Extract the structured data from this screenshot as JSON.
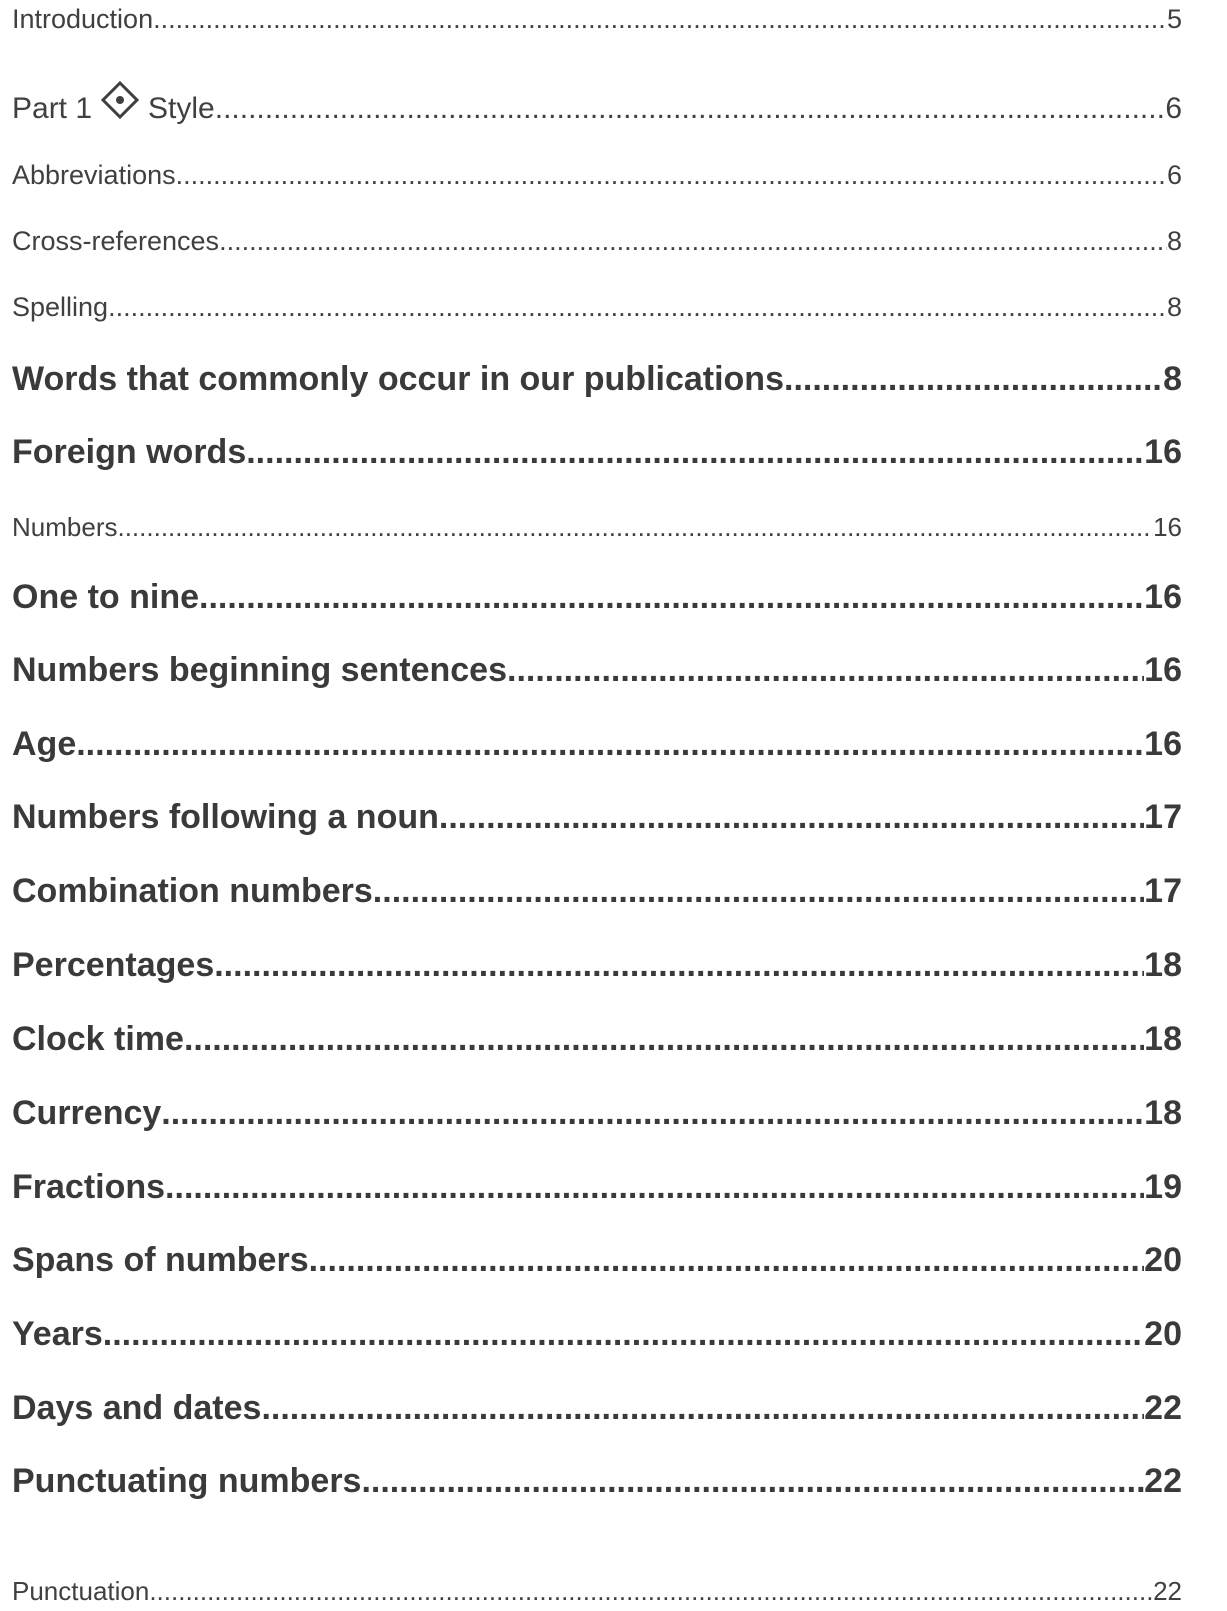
{
  "toc": {
    "intro": {
      "label": "Introduction",
      "page": "5"
    },
    "part1": {
      "prefix": "Part 1",
      "icon": "diamond-dot-icon",
      "label": "Style",
      "page": "6"
    },
    "abbrev": {
      "label": "Abbreviations",
      "page": "6"
    },
    "crossref": {
      "label": "Cross-references",
      "page": "8"
    },
    "spelling": {
      "label": "Spelling",
      "page": "8"
    },
    "words": {
      "label": "Words that commonly occur in our publications",
      "page": "8"
    },
    "foreign": {
      "label": "Foreign words",
      "page": "16"
    },
    "numbers": {
      "label": "Numbers",
      "page": "16"
    },
    "onetonine": {
      "label": "One to nine",
      "page": "16"
    },
    "numbegin": {
      "label": "Numbers beginning sentences",
      "page": "16"
    },
    "age": {
      "label": "Age",
      "page": "16"
    },
    "numnoun": {
      "label": "Numbers following a noun",
      "page": "17"
    },
    "combo": {
      "label": "Combination numbers",
      "page": "17"
    },
    "percent": {
      "label": "Percentages",
      "page": "18"
    },
    "clock": {
      "label": "Clock time",
      "page": "18"
    },
    "currency": {
      "label": "Currency",
      "page": "18"
    },
    "fractions": {
      "label": "Fractions",
      "page": "19"
    },
    "spans": {
      "label": "Spans of numbers",
      "page": "20"
    },
    "years": {
      "label": "Years",
      "page": "20"
    },
    "days": {
      "label": "Days and dates",
      "page": "22"
    },
    "punctnum": {
      "label": "Punctuating numbers",
      "page": "22"
    },
    "punct": {
      "label": "Punctuation",
      "page": "22"
    }
  }
}
